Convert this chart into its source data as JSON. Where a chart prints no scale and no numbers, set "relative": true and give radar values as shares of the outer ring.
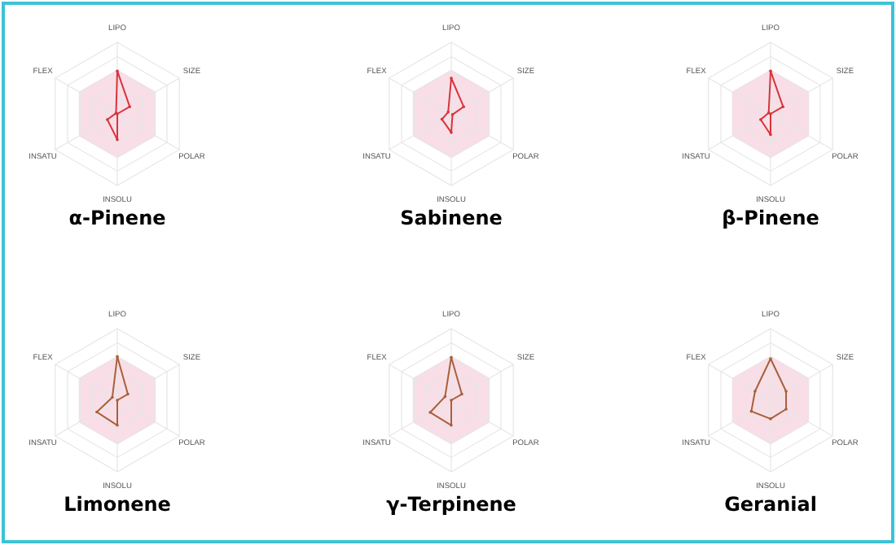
{
  "chart_data": [
    {
      "type": "radar",
      "title": "α-Pinene",
      "relative": true,
      "categories": [
        "LIPO",
        "SIZE",
        "POLAR",
        "INSOLU",
        "INSATU",
        "FLEX"
      ],
      "grid": true,
      "marker": "circle",
      "series": [
        {
          "color": "#d8343c",
          "values": [
            0.6,
            0.2,
            0.0,
            0.36,
            0.16,
            0.02
          ]
        }
      ]
    },
    {
      "type": "radar",
      "title": "Sabinene",
      "relative": true,
      "categories": [
        "LIPO",
        "SIZE",
        "POLAR",
        "INSOLU",
        "INSATU",
        "FLEX"
      ],
      "grid": true,
      "marker": "circle",
      "series": [
        {
          "color": "#d8343c",
          "values": [
            0.5,
            0.2,
            0.02,
            0.26,
            0.15,
            0.05
          ]
        }
      ]
    },
    {
      "type": "radar",
      "title": "β-Pinene",
      "relative": true,
      "categories": [
        "LIPO",
        "SIZE",
        "POLAR",
        "INSOLU",
        "INSATU",
        "FLEX"
      ],
      "grid": true,
      "marker": "circle",
      "series": [
        {
          "color": "#d8343c",
          "values": [
            0.6,
            0.2,
            0.0,
            0.29,
            0.16,
            0.03
          ]
        }
      ]
    },
    {
      "type": "radar",
      "title": "Limonene",
      "relative": true,
      "categories": [
        "LIPO",
        "SIZE",
        "POLAR",
        "INSOLU",
        "INSATU",
        "FLEX"
      ],
      "grid": true,
      "marker": "circle",
      "series": [
        {
          "color": "#a8603a",
          "values": [
            0.61,
            0.17,
            0.0,
            0.35,
            0.33,
            0.08
          ]
        }
      ]
    },
    {
      "type": "radar",
      "title": "γ-Terpinene",
      "relative": true,
      "categories": [
        "LIPO",
        "SIZE",
        "POLAR",
        "INSOLU",
        "INSATU",
        "FLEX"
      ],
      "grid": true,
      "marker": "circle",
      "series": [
        {
          "color": "#a8603a",
          "values": [
            0.6,
            0.17,
            0.0,
            0.35,
            0.34,
            0.1
          ]
        }
      ]
    },
    {
      "type": "radar",
      "title": "Geranial",
      "relative": true,
      "categories": [
        "LIPO",
        "SIZE",
        "POLAR",
        "INSOLU",
        "INSATU",
        "FLEX"
      ],
      "grid": true,
      "marker": "circle",
      "series": [
        {
          "color": "#a8603a",
          "values": [
            0.58,
            0.25,
            0.25,
            0.26,
            0.31,
            0.25
          ]
        }
      ]
    }
  ]
}
